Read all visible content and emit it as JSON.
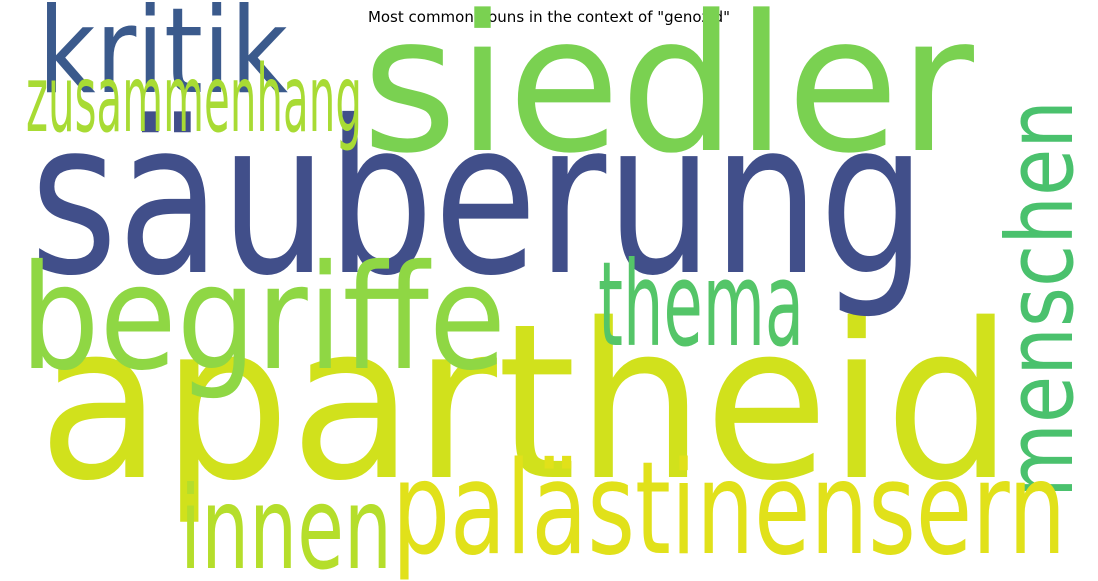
{
  "chart_data": {
    "type": "wordcloud",
    "title": "Most common nouns in the context of \"genozid\"",
    "words": [
      {
        "text": "apartheid",
        "weight": 1.0,
        "color": "#d1e11c",
        "orientation": "horizontal"
      },
      {
        "text": "säuberung",
        "weight": 0.98,
        "color": "#414f8a",
        "orientation": "horizontal"
      },
      {
        "text": "siedler",
        "weight": 0.85,
        "color": "#7ad151",
        "orientation": "horizontal"
      },
      {
        "text": "begriffe",
        "weight": 0.6,
        "color": "#8fd744",
        "orientation": "horizontal"
      },
      {
        "text": "menschen",
        "weight": 0.5,
        "color": "#4ac16d",
        "orientation": "vertical"
      },
      {
        "text": "palästinensern",
        "weight": 0.5,
        "color": "#e1e11a",
        "orientation": "horizontal"
      },
      {
        "text": "kritik",
        "weight": 0.45,
        "color": "#3b5a8c",
        "orientation": "horizontal"
      },
      {
        "text": "thema",
        "weight": 0.44,
        "color": "#54c568",
        "orientation": "horizontal"
      },
      {
        "text": "innen",
        "weight": 0.42,
        "color": "#b5de2b",
        "orientation": "horizontal"
      },
      {
        "text": "zusammenhang",
        "weight": 0.3,
        "color": "#a8db34",
        "orientation": "horizontal"
      }
    ]
  }
}
